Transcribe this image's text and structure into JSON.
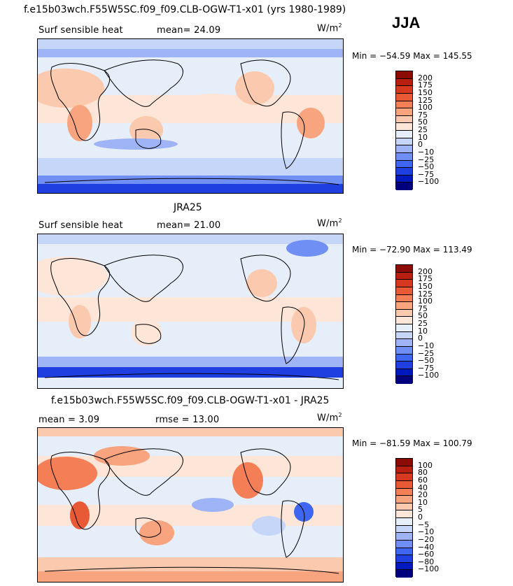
{
  "season": "JJA",
  "colors": {
    "scale": [
      "#00007f",
      "#0019bf",
      "#1f3fe0",
      "#3f66f0",
      "#6f8ff5",
      "#9fb4f7",
      "#c6d6f9",
      "#e6eefa",
      "#fde6d8",
      "#fbc9ad",
      "#f8a47e",
      "#f47f57",
      "#e85a36",
      "#d6391f",
      "#b91f10",
      "#8c0c05"
    ]
  },
  "panels": [
    {
      "id": "model",
      "title": "f.e15b03wch.F55W5SC.f09_f09.CLB-OGW-T1-x01 (yrs 1980-1989)",
      "left_label": "Surf sensible heat",
      "mid_label": "mean=  24.09",
      "units_main": "W/m",
      "units_exp": "2",
      "minmax": "Min = −54.59 Max = 145.55",
      "levels": [
        "200",
        "175",
        "150",
        "125",
        "100",
        "75",
        "50",
        "25",
        "10",
        "0",
        "−10",
        "−25",
        "−50",
        "−75",
        "−100"
      ]
    },
    {
      "id": "obs",
      "title": "JRA25",
      "left_label": "Surf sensible heat",
      "mid_label": "mean=  21.00",
      "units_main": "W/m",
      "units_exp": "2",
      "minmax": "Min = −72.90 Max = 113.49",
      "levels": [
        "200",
        "175",
        "150",
        "125",
        "100",
        "75",
        "50",
        "25",
        "10",
        "0",
        "−10",
        "−25",
        "−50",
        "−75",
        "−100"
      ]
    },
    {
      "id": "diff",
      "title": "f.e15b03wch.F55W5SC.f09_f09.CLB-OGW-T1-x01 - JRA25",
      "left_label": "mean =    3.09",
      "mid_label": "rmse =   13.00",
      "units_main": "W/m",
      "units_exp": "2",
      "minmax": "Min = −81.59 Max = 100.79",
      "levels": [
        "100",
        "80",
        "60",
        "40",
        "20",
        "10",
        "5",
        "0",
        "−5",
        "−10",
        "−20",
        "−40",
        "−60",
        "−80",
        "−100"
      ]
    }
  ]
}
